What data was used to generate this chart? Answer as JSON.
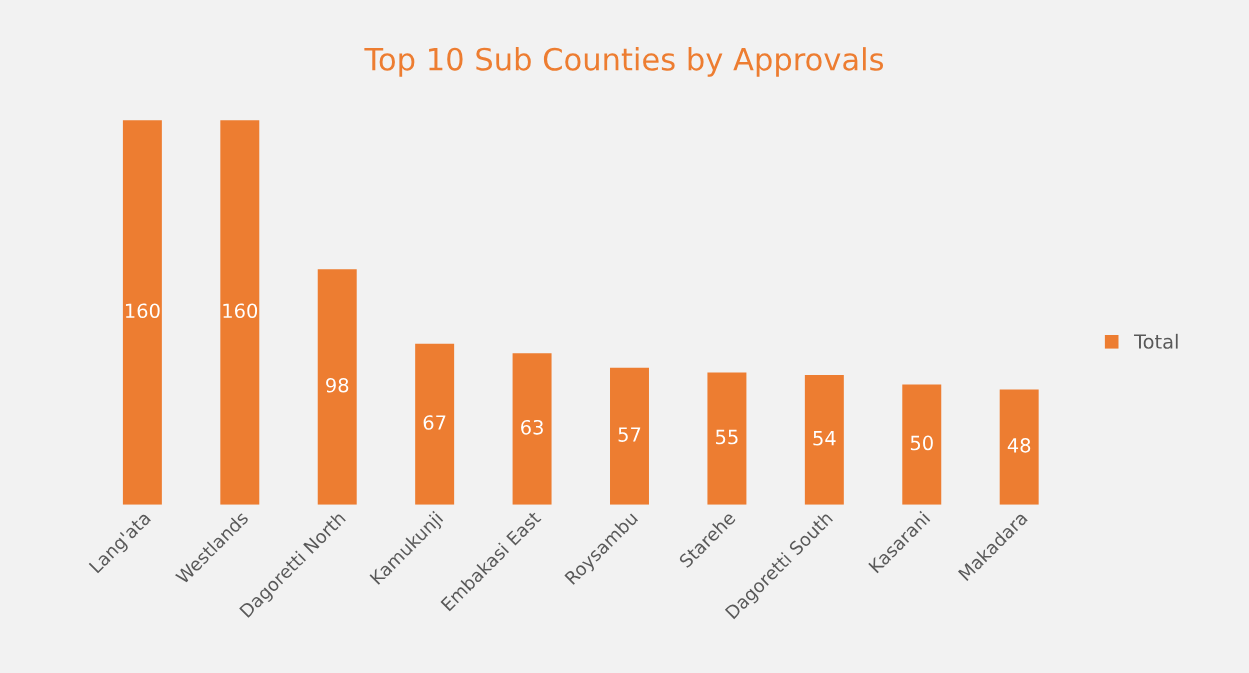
{
  "chart_data": {
    "type": "bar",
    "title": "Top 10 Sub Counties by Approvals",
    "categories": [
      "Lang'ata",
      "Westlands",
      "Dagoretti North",
      "Kamukunji",
      "Embakasi East",
      "Roysambu",
      "Starehe",
      "Dagoretti South",
      "Kasarani",
      "Makadara"
    ],
    "series": [
      {
        "name": "Total",
        "color": "#ed7d31",
        "values": [
          160,
          160,
          98,
          67,
          63,
          57,
          55,
          54,
          50,
          48
        ]
      }
    ],
    "data_labels": true,
    "legend": "right",
    "grid": false,
    "tick_labels": "x"
  }
}
